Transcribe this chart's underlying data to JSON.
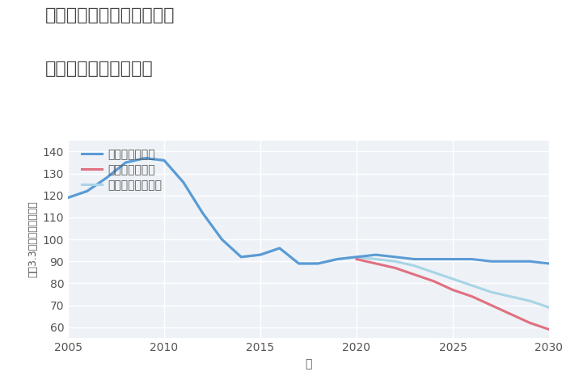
{
  "title_line1": "兵庫県豊岡市但東町小坂の",
  "title_line2": "中古戸建ての価格推移",
  "xlabel": "年",
  "ylabel": "坪（3.3㎡）単価（万円）",
  "background_color": "#ffffff",
  "plot_bg_color": "#eef2f7",
  "grid_color": "#ffffff",
  "xlim": [
    2005,
    2030
  ],
  "ylim": [
    55,
    145
  ],
  "yticks": [
    60,
    70,
    80,
    90,
    100,
    110,
    120,
    130,
    140
  ],
  "xticks": [
    2005,
    2010,
    2015,
    2020,
    2025,
    2030
  ],
  "good_scenario": {
    "label": "グッドシナリオ",
    "color": "#5b9bd5",
    "linewidth": 2.2,
    "x": [
      2005,
      2006,
      2007,
      2008,
      2009,
      2010,
      2011,
      2012,
      2013,
      2014,
      2015,
      2016,
      2017,
      2018,
      2019,
      2020,
      2021,
      2022,
      2023,
      2024,
      2025,
      2026,
      2027,
      2028,
      2029,
      2030
    ],
    "y": [
      119,
      122,
      128,
      135,
      137,
      136,
      126,
      112,
      100,
      92,
      93,
      96,
      89,
      89,
      91,
      92,
      93,
      92,
      91,
      91,
      91,
      91,
      90,
      90,
      90,
      89
    ]
  },
  "bad_scenario": {
    "label": "バッドシナリオ",
    "color": "#e07080",
    "linewidth": 2.2,
    "x": [
      2020,
      2021,
      2022,
      2023,
      2024,
      2025,
      2026,
      2027,
      2028,
      2029,
      2030
    ],
    "y": [
      91,
      89,
      87,
      84,
      81,
      77,
      74,
      70,
      66,
      62,
      59
    ]
  },
  "normal_scenario": {
    "label": "ノーマルシナリオ",
    "color": "#a8d4e6",
    "linewidth": 2.2,
    "x": [
      2005,
      2006,
      2007,
      2008,
      2009,
      2010,
      2011,
      2012,
      2013,
      2014,
      2015,
      2016,
      2017,
      2018,
      2019,
      2020,
      2021,
      2022,
      2023,
      2024,
      2025,
      2026,
      2027,
      2028,
      2029,
      2030
    ],
    "y": [
      119,
      122,
      128,
      135,
      137,
      136,
      126,
      112,
      100,
      92,
      93,
      96,
      89,
      89,
      91,
      92,
      91,
      90,
      88,
      85,
      82,
      79,
      76,
      74,
      72,
      69
    ]
  },
  "title_fontsize": 16,
  "tick_fontsize": 10,
  "label_fontsize": 10,
  "legend_fontsize": 10
}
